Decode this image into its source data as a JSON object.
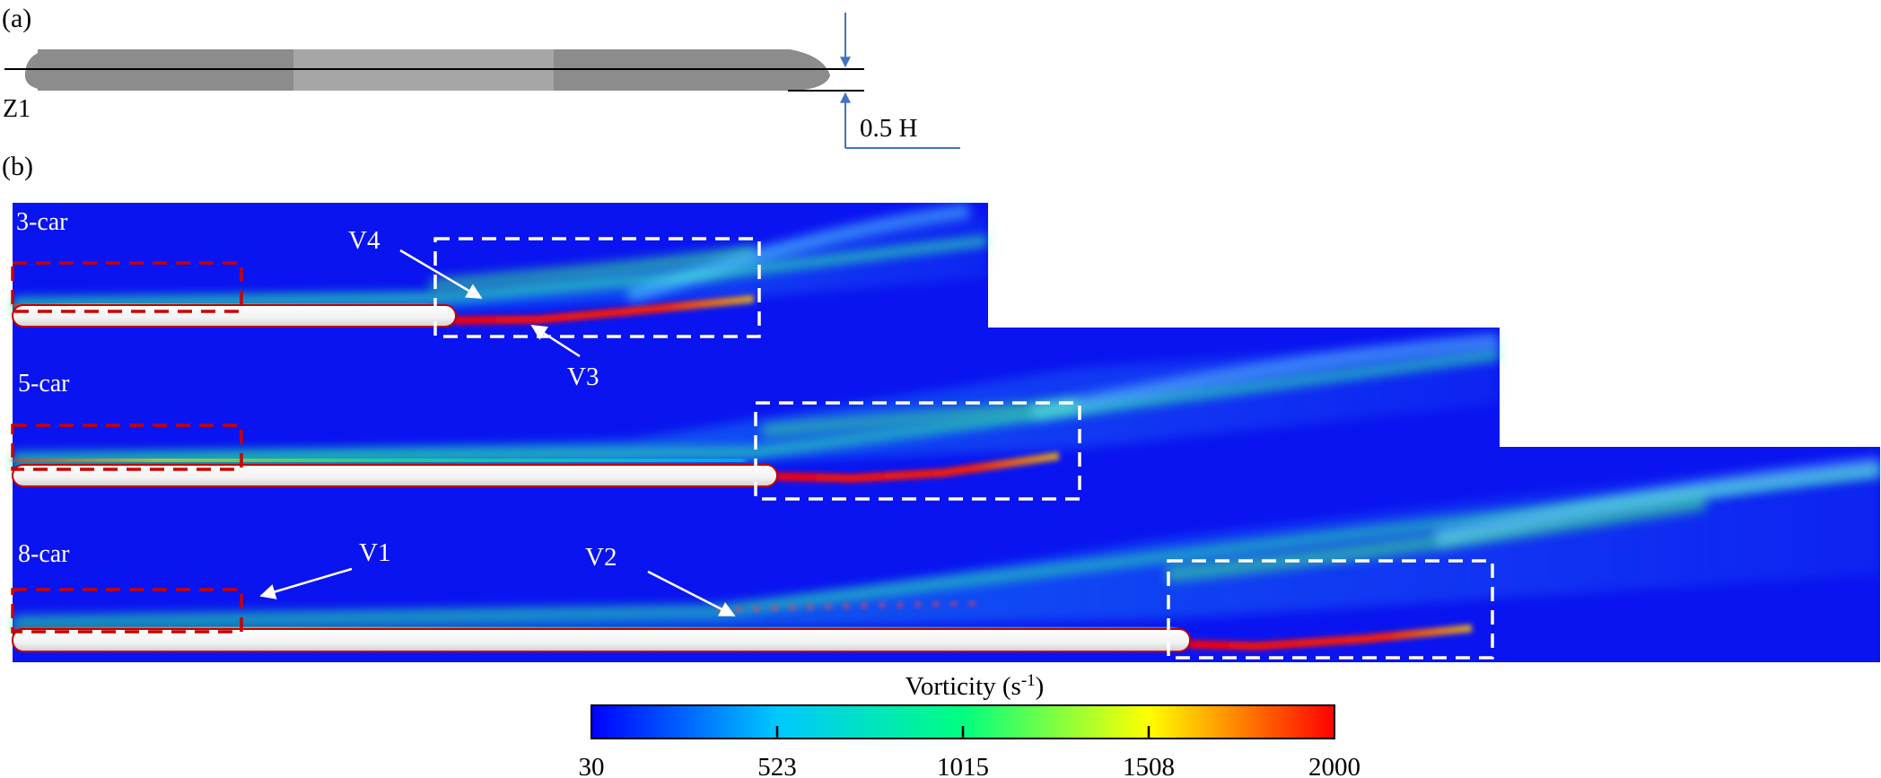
{
  "panel_a": {
    "label": "(a)",
    "section_label": "Z1",
    "height_label": "0.5 H"
  },
  "panel_b": {
    "label": "(b)",
    "cases": [
      {
        "name": "3-car"
      },
      {
        "name": "5-car"
      },
      {
        "name": "8-car"
      }
    ],
    "annotations": {
      "v1": "V1",
      "v2": "V2",
      "v3": "V3",
      "v4": "V4"
    }
  },
  "colorbar": {
    "title": "Vorticity (s-1)",
    "title_base": "Vorticity (s",
    "title_sup": "-1",
    "title_end": ")",
    "ticks": [
      "30",
      "523",
      "1015",
      "1508",
      "2000"
    ],
    "min": 30,
    "max": 2000,
    "colors": [
      "#0000ff",
      "#00c8ff",
      "#00ff80",
      "#ffff00",
      "#ff0000"
    ]
  },
  "colors": {
    "background": "#0a14f0",
    "dashed_red": "#cc0000",
    "dashed_white": "#ffffff",
    "annotation_blue": "#4472c4"
  }
}
